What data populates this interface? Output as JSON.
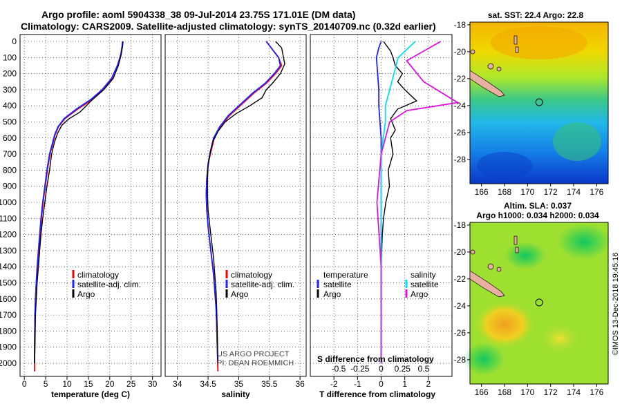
{
  "header": {
    "line1": "Argo profile: aoml 5904338_38 09-Jul-2014 23.75S 171.01E (DM data)",
    "line2": "Climatology: CARS2009. Satellite-adjusted climatology: synTS_20140709.nc (0.32d earlier)"
  },
  "colors": {
    "climatology": "#ff0000",
    "satellite": "#2020ff",
    "argo": "#000000",
    "cyan": "#00e5ee",
    "magenta": "#e010e0"
  },
  "depth_ticks": [
    0,
    100,
    200,
    300,
    400,
    500,
    600,
    700,
    800,
    900,
    1000,
    1100,
    1200,
    1300,
    1400,
    1500,
    1600,
    1700,
    1800,
    1900,
    2000
  ],
  "chart_data": [
    {
      "type": "line",
      "name": "temperature",
      "xlabel": "temperature (deg C)",
      "xlim": [
        -1,
        32
      ],
      "ylim": [
        0,
        2060
      ],
      "xticks": [
        0,
        5,
        10,
        15,
        20,
        25,
        30
      ],
      "legend": [
        "climatology",
        "satellite-adj. clim.",
        "Argo"
      ],
      "series": [
        {
          "name": "climatology",
          "x": [
            23,
            22.9,
            22.6,
            21.8,
            20.5,
            18.5,
            16,
            12.5,
            9.5,
            8,
            7.2,
            6.6,
            6,
            5.4,
            4.9,
            4.4,
            4,
            3.7,
            3.4,
            3.1,
            2.8,
            2.6,
            2.5,
            2.4,
            2.4
          ],
          "y": [
            0,
            30,
            80,
            150,
            230,
            300,
            360,
            420,
            480,
            530,
            580,
            640,
            700,
            800,
            900,
            1000,
            1100,
            1200,
            1300,
            1400,
            1500,
            1600,
            1700,
            1900,
            2050
          ]
        },
        {
          "name": "satellite-adj. clim.",
          "x": [
            23,
            22.9,
            22.6,
            21.8,
            20.4,
            18.2,
            15.6,
            12.2,
            9.3,
            7.9,
            7.1,
            6.5,
            5.9,
            5.3,
            4.8,
            4.3,
            3.9,
            3.6,
            3.3,
            3.0,
            2.8,
            2.6,
            2.5,
            2.4,
            2.4
          ],
          "y": [
            0,
            30,
            80,
            150,
            230,
            300,
            360,
            420,
            480,
            530,
            580,
            640,
            700,
            800,
            900,
            1000,
            1100,
            1200,
            1300,
            1400,
            1500,
            1600,
            1700,
            1900,
            2000
          ]
        },
        {
          "name": "Argo",
          "x": [
            23.1,
            23,
            22.7,
            22,
            20.8,
            18.6,
            16,
            14.5,
            13,
            10.5,
            8.8,
            7.8,
            7.0,
            6.4,
            5.9,
            5.3,
            4.8,
            4.3,
            3.9,
            3.6,
            3.3,
            3.0,
            2.8,
            2.6,
            2.5,
            2.4
          ],
          "y": [
            0,
            30,
            80,
            150,
            230,
            300,
            360,
            400,
            440,
            480,
            520,
            570,
            630,
            700,
            800,
            900,
            1000,
            1100,
            1200,
            1300,
            1400,
            1500,
            1600,
            1700,
            1900,
            2000
          ]
        }
      ]
    },
    {
      "type": "line",
      "name": "salinity",
      "xlabel": "salinity",
      "xlim": [
        33.8,
        36.1
      ],
      "ylim": [
        0,
        2060
      ],
      "xticks": [
        34,
        34.5,
        35,
        35.5,
        36
      ],
      "legend": [
        "climatology",
        "satellite-adj. clim.",
        "Argo"
      ],
      "annotation": [
        "US ARGO PROJECT",
        "PI: DEAN ROEMMICH"
      ],
      "series": [
        {
          "name": "climatology",
          "x": [
            35.45,
            35.55,
            35.65,
            35.7,
            35.6,
            35.45,
            35.25,
            35.05,
            34.85,
            34.7,
            34.6,
            34.55,
            34.5,
            34.48,
            34.47,
            34.48,
            34.5,
            34.53,
            34.56,
            34.59,
            34.61,
            34.63,
            34.64,
            34.65,
            34.66
          ],
          "y": [
            0,
            50,
            100,
            150,
            200,
            260,
            320,
            390,
            460,
            530,
            600,
            680,
            760,
            850,
            950,
            1050,
            1150,
            1250,
            1350,
            1450,
            1550,
            1650,
            1750,
            1900,
            2050
          ]
        },
        {
          "name": "satellite-adj. clim.",
          "x": [
            35.45,
            35.55,
            35.65,
            35.68,
            35.58,
            35.43,
            35.23,
            35.03,
            34.83,
            34.69,
            34.59,
            34.54,
            34.5,
            34.48,
            34.47,
            34.48,
            34.5,
            34.53,
            34.56,
            34.59,
            34.61,
            34.63,
            34.64,
            34.65,
            34.66
          ],
          "y": [
            0,
            50,
            100,
            150,
            200,
            260,
            320,
            390,
            460,
            530,
            600,
            680,
            760,
            850,
            950,
            1050,
            1150,
            1250,
            1350,
            1450,
            1550,
            1650,
            1750,
            1900,
            2000
          ]
        },
        {
          "name": "Argo",
          "x": [
            35.6,
            35.7,
            35.72,
            35.75,
            35.68,
            35.55,
            35.45,
            35.38,
            35.18,
            34.95,
            34.78,
            34.66,
            34.58,
            34.53,
            34.5,
            34.49,
            34.49,
            34.5,
            34.53,
            34.56,
            34.59,
            34.61,
            34.63,
            34.64,
            34.65,
            34.66
          ],
          "y": [
            0,
            40,
            80,
            140,
            200,
            260,
            300,
            350,
            400,
            450,
            500,
            560,
            620,
            700,
            780,
            860,
            950,
            1050,
            1150,
            1250,
            1350,
            1450,
            1550,
            1650,
            1800,
            2000
          ]
        }
      ]
    },
    {
      "type": "line",
      "name": "differences",
      "xlabel": "T difference from climatology",
      "second_xlabel": "S difference from climatology",
      "xlim": [
        -3,
        3
      ],
      "ylim": [
        0,
        2060
      ],
      "xticks": [
        -2,
        -1,
        0,
        1,
        2
      ],
      "second_xticks": [
        "-0.5",
        "-0.25",
        "0",
        "0.25",
        "0.5"
      ],
      "legend_left_title": "temperature",
      "legend_right_title": "salinity",
      "legend_left": [
        "satellite",
        "Argo"
      ],
      "legend_right": [
        "satellite",
        "Argo"
      ],
      "series": [
        {
          "name": "T satellite",
          "x": [
            0,
            -0.1,
            -0.2,
            -0.15,
            -0.1,
            -0.1,
            -0.05,
            0,
            0,
            0,
            0,
            0,
            0
          ],
          "y": [
            0,
            40,
            100,
            200,
            300,
            400,
            500,
            600,
            800,
            1000,
            1200,
            1400,
            2000
          ]
        },
        {
          "name": "T Argo",
          "x": [
            0.1,
            0.4,
            0.5,
            0.6,
            0.9,
            0.7,
            1.0,
            1.5,
            0.7,
            0.4,
            0.6,
            0.4,
            0.5,
            0.3,
            0.35,
            0.2,
            0.1,
            0.05,
            0,
            0
          ],
          "y": [
            0,
            60,
            100,
            150,
            200,
            250,
            300,
            370,
            420,
            480,
            550,
            600,
            700,
            800,
            900,
            1000,
            1100,
            1200,
            1400,
            2000
          ]
        },
        {
          "name": "S satellite",
          "x": [
            0.4,
            0.3,
            0.2,
            0.15,
            0.1,
            0.05,
            0.05,
            0,
            0,
            0,
            0
          ],
          "y": [
            0,
            50,
            100,
            200,
            300,
            400,
            500,
            700,
            1000,
            1400,
            2000
          ]
        },
        {
          "name": "S Argo",
          "x": [
            0.7,
            0.5,
            0.3,
            0.5,
            0.9,
            0.3,
            0.1,
            0,
            -0.05,
            0,
            0
          ],
          "y": [
            0,
            60,
            120,
            250,
            380,
            430,
            500,
            700,
            1000,
            1400,
            2000
          ]
        }
      ]
    },
    {
      "type": "heatmap",
      "name": "sst-map",
      "title": "sat. SST: 22.4 Argo: 22.8",
      "xticks": [
        166,
        168,
        170,
        172,
        174,
        176
      ],
      "yticks": [
        -18,
        -20,
        -22,
        -24,
        -26,
        -28
      ],
      "xlim": [
        165,
        177
      ],
      "ylim": [
        -29.8,
        -17.8
      ],
      "marker": {
        "lon": 171.01,
        "lat": -23.75
      }
    },
    {
      "type": "heatmap",
      "name": "sla-map",
      "title": "Altim. SLA: 0.037",
      "subtitle": "Argo h1000: 0.034 h2000: 0.034",
      "xticks": [
        166,
        168,
        170,
        172,
        174,
        176
      ],
      "yticks": [
        -18,
        -20,
        -22,
        -24,
        -26,
        -28
      ],
      "xlim": [
        165,
        177
      ],
      "ylim": [
        -29.8,
        -17.8
      ],
      "marker": {
        "lon": 171.01,
        "lat": -23.75
      }
    }
  ],
  "footer_stamp": "©IMOS 13-Dec-2018 19:45:16"
}
